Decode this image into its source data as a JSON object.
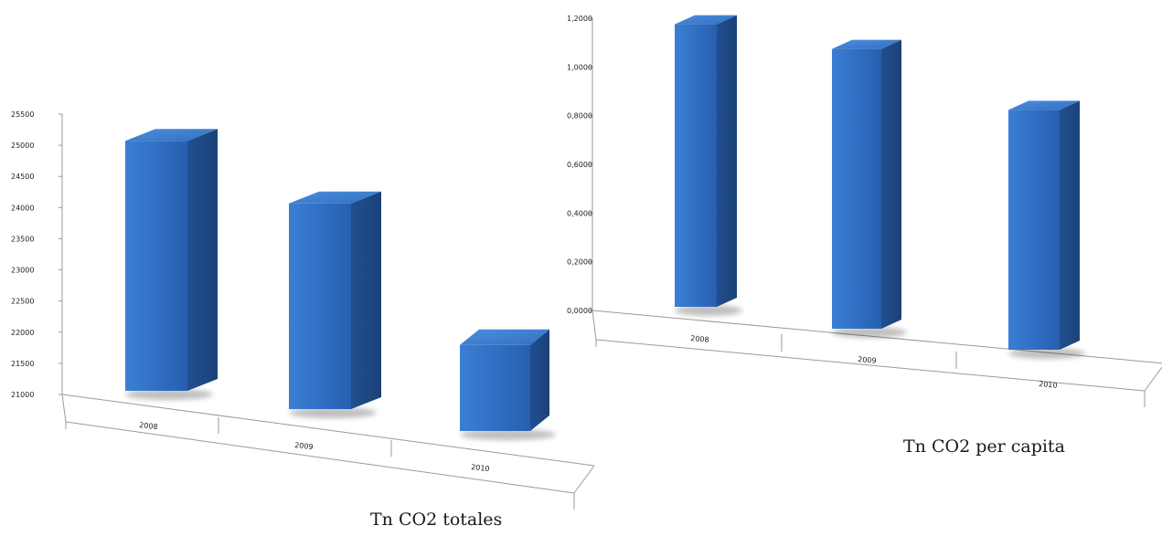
{
  "colors": {
    "bar_front": "#2f72c8",
    "bar_side": "#1f4f8f",
    "bar_top": "#3f82d6",
    "axis": "#9a9a9a"
  },
  "chart_data": [
    {
      "type": "bar",
      "title": "Tn CO2 totales",
      "categories": [
        "2008",
        "2009",
        "2010"
      ],
      "values": [
        25050,
        24150,
        22000
      ],
      "ylim": [
        21000,
        25500
      ],
      "yticks": [
        "21000",
        "21500",
        "22000",
        "22500",
        "23000",
        "23500",
        "24000",
        "24500",
        "25000",
        "25500"
      ],
      "xlabel": "",
      "ylabel": "",
      "grid": false,
      "style": "3d-column"
    },
    {
      "type": "bar",
      "title": "Tn CO2 per capita",
      "categories": [
        "2008",
        "2009",
        "2010"
      ],
      "values": [
        1.17,
        1.1,
        0.88
      ],
      "ylim": [
        0,
        1.2
      ],
      "yticks": [
        "0,0000",
        "0,2000",
        "0,4000",
        "0,6000",
        "0,8000",
        "1,0000",
        "1,2000"
      ],
      "xlabel": "",
      "ylabel": "",
      "grid": false,
      "style": "3d-column"
    }
  ]
}
